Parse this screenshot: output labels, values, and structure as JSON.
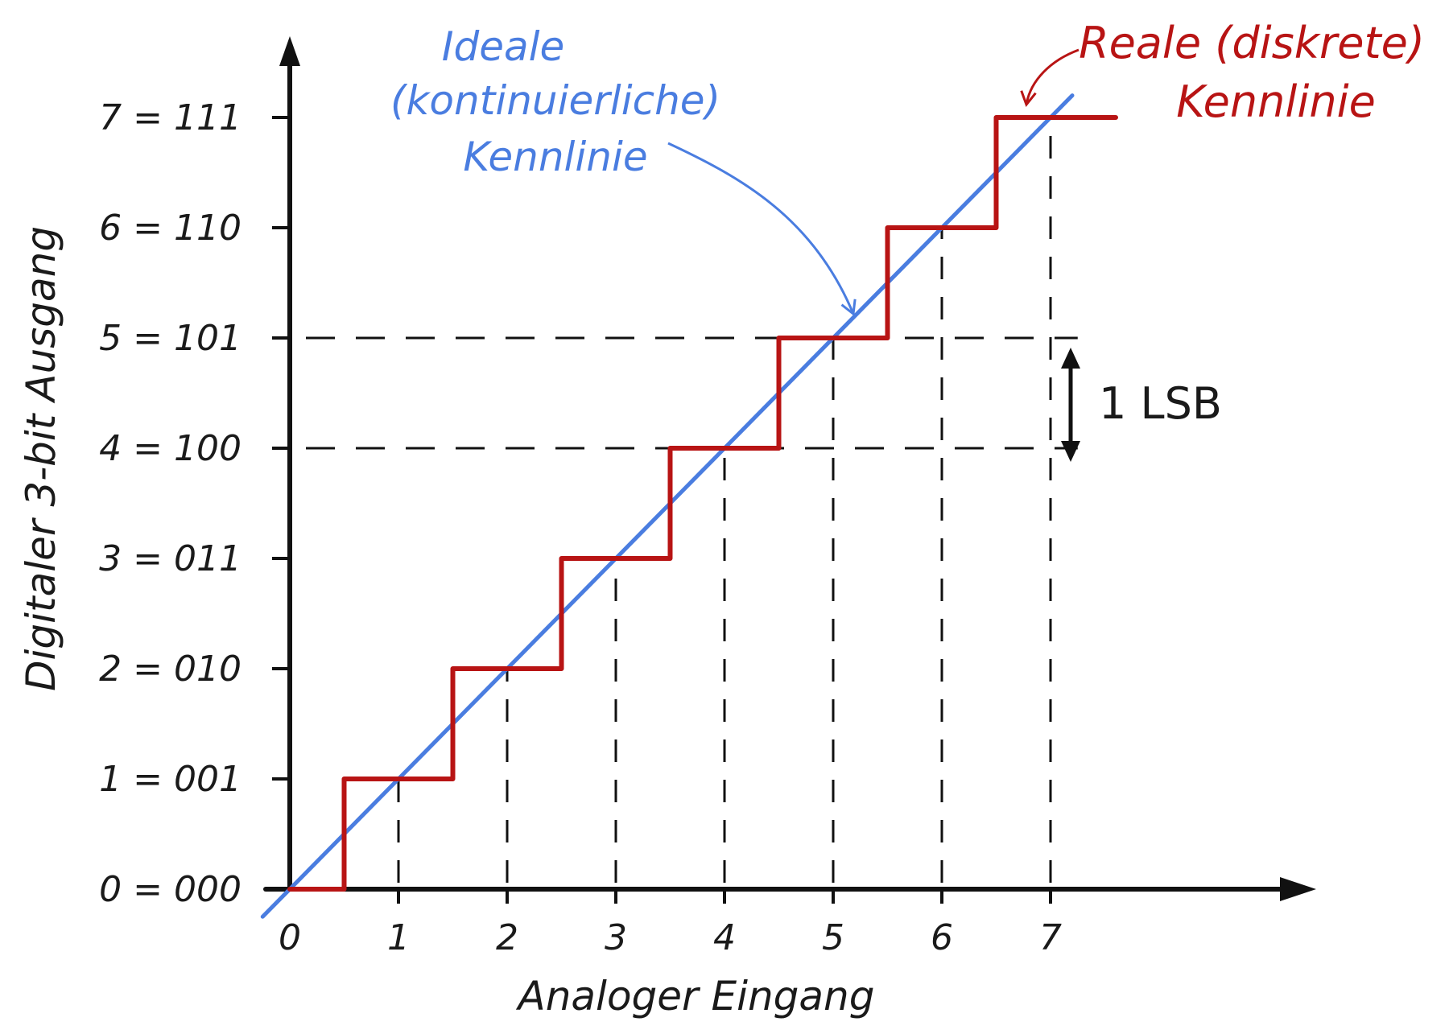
{
  "chart_data": {
    "type": "line",
    "xlabel": "Analoger Eingang",
    "ylabel": "Digitaler 3-bit Ausgang",
    "x_ticks": [
      "0",
      "1",
      "2",
      "3",
      "4",
      "5",
      "6",
      "7"
    ],
    "y_ticks": [
      "0 = 000",
      "1 = 001",
      "2 = 010",
      "3 = 011",
      "4 = 100",
      "5 = 101",
      "6 = 110",
      "7 = 111"
    ],
    "xlim": [
      0,
      7.6
    ],
    "ylim": [
      0,
      7.6
    ],
    "series": [
      {
        "name": "Ideale (kontinuierliche) Kennlinie",
        "style": "line",
        "color": "#4a7de0",
        "x": [
          -0.25,
          7.2
        ],
        "y": [
          -0.25,
          7.2
        ]
      },
      {
        "name": "Reale (diskrete) Kennlinie",
        "style": "step",
        "color": "#b81414",
        "x": [
          0,
          0.5,
          0.5,
          1.5,
          1.5,
          2.5,
          2.5,
          3.5,
          3.5,
          4.5,
          4.5,
          5.5,
          5.5,
          6.5,
          6.5,
          7.6
        ],
        "y": [
          0,
          0,
          1,
          1,
          2,
          2,
          3,
          3,
          4,
          4,
          5,
          5,
          6,
          6,
          7,
          7
        ]
      }
    ],
    "annotations": {
      "ideal_label": [
        "Ideale",
        "(kontinuierliche)",
        "Kennlinie"
      ],
      "real_label_line1": "Reale (diskrete)",
      "real_label_line2": "Kennlinie",
      "lsb_label": "1 LSB"
    },
    "grid": "dashed guides at integer inputs and at outputs 4 and 5",
    "legend": "none"
  }
}
